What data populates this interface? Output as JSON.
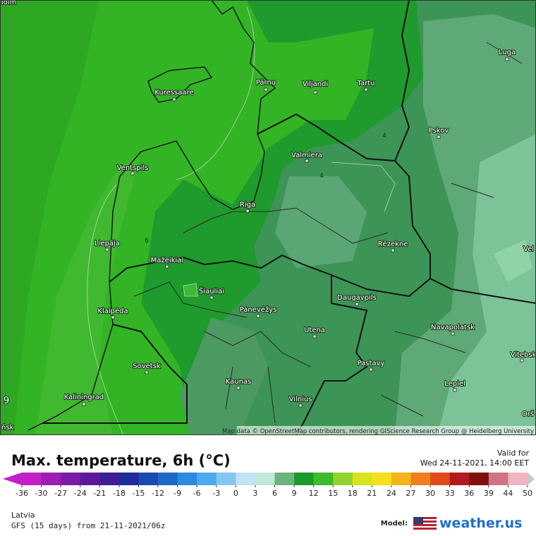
{
  "map": {
    "cities": [
      "Kuressaare",
      "Pärnu",
      "Viljandi",
      "Tartu",
      "Luga",
      "Pskov",
      "Valmiera",
      "Ventspils",
      "Riga",
      "Liepāja",
      "Rēzekne",
      "Mažeikiai",
      "Šiauliai",
      "Klaipėda",
      "Panevėžys",
      "Daugavpils",
      "Utena",
      "Navapolatsk",
      "Vitebsk",
      "Sovetsk",
      "Pastavy",
      "Kaunas",
      "Lepiel",
      "Kaliningrad",
      "Vilnius"
    ],
    "edge_labels": [
      "iolm",
      "Vel",
      "Orš",
      "ńsk"
    ],
    "contour_labels": [
      "4",
      "4",
      "6",
      "9"
    ],
    "attribution": "Map data © OpenStreetMap contributors, rendering GIScience Research Group @ Heidelberg University"
  },
  "legend": {
    "title": "Max. temperature, 6h (°C)",
    "valid_label": "Valid for",
    "valid_time": "Wed 24-11-2021, 14:00 EET",
    "ticks": [
      -36,
      -30,
      -27,
      -24,
      -21,
      -18,
      -15,
      -12,
      -9,
      -6,
      -3,
      0,
      3,
      6,
      9,
      12,
      15,
      18,
      21,
      24,
      27,
      30,
      33,
      36,
      39,
      44,
      50
    ],
    "colors": [
      "#c21fc8",
      "#9c1cb4",
      "#7c1aa8",
      "#5c199e",
      "#3d1c96",
      "#1f2c98",
      "#1a49b2",
      "#1e68c9",
      "#2c89e0",
      "#4ea8ee",
      "#86c6f2",
      "#c2e2f5",
      "#bfe9d6",
      "#6cb47e",
      "#1c9b2b",
      "#3dbb28",
      "#92d22b",
      "#d8e41c",
      "#f5e01b",
      "#f5b41b",
      "#f0801b",
      "#e04a1b",
      "#b21b1b",
      "#7e1010",
      "#d07482",
      "#f0b4c2",
      "#c8c8c8"
    ]
  },
  "footer": {
    "region": "Latvia",
    "run": "GFS (15 days) from  21-11-2021/06z",
    "model_label": "Model:",
    "brand": "weather.us"
  }
}
